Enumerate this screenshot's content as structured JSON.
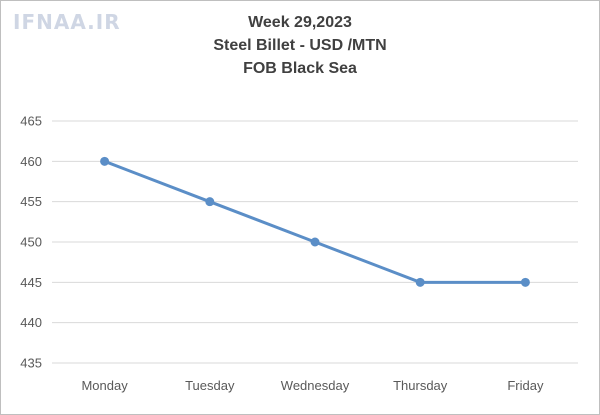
{
  "logo_text": "IFNAA.IR",
  "chart_data": {
    "type": "line",
    "title": [
      "Week 29,2023",
      "Steel Billet - USD /MTN",
      "FOB Black Sea"
    ],
    "categories": [
      "Monday",
      "Tuesday",
      "Wednesday",
      "Thursday",
      "Friday"
    ],
    "series": [
      {
        "values": [
          460,
          455,
          450,
          445,
          445
        ]
      }
    ],
    "ylim": [
      435,
      465
    ],
    "yticks": [
      465,
      460,
      455,
      450,
      445,
      440,
      435
    ],
    "grid": true,
    "legend": "none",
    "colors": {
      "line": "#5b8ec7",
      "grid": "#d9d9d9",
      "text": "#595959",
      "title": "#404040"
    }
  }
}
